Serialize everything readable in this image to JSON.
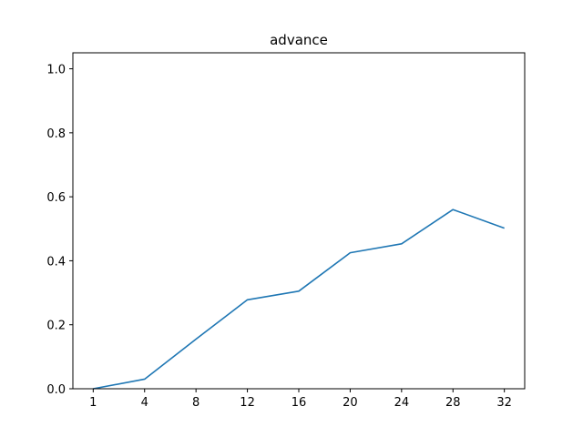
{
  "chart_data": {
    "type": "line",
    "title": "advance",
    "xlabel": "",
    "ylabel": "",
    "categories": [
      "1",
      "4",
      "8",
      "12",
      "16",
      "20",
      "24",
      "28",
      "32"
    ],
    "series": [
      {
        "values": [
          0.0,
          0.03,
          0.155,
          0.278,
          0.305,
          0.425,
          0.453,
          0.56,
          0.502
        ],
        "color": "#1f77b4"
      }
    ],
    "ylim": [
      0,
      1.05
    ],
    "yticks": [
      0.0,
      0.2,
      0.4,
      0.6,
      0.8,
      1.0
    ],
    "ytick_labels": [
      "0.0",
      "0.2",
      "0.4",
      "0.6",
      "0.8",
      "1.0"
    ],
    "grid": false,
    "legend": "none"
  }
}
